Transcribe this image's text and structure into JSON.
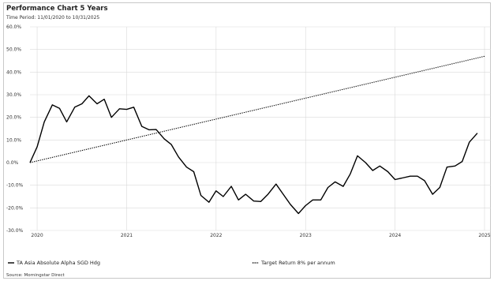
{
  "header": {
    "title": "Performance Chart 5 Years",
    "period_label": "Time Period:",
    "period_value": "11/01/2020 to 10/31/2025"
  },
  "footer": {
    "source": "Source: Morningstar Direct"
  },
  "chart_data": {
    "type": "line",
    "title": "Performance Chart 5 Years",
    "y_tick_labels": [
      "60.0%",
      "50.0%",
      "40.0%",
      "30.0%",
      "20.0%",
      "10.0%",
      "0.0%",
      "-10.0%",
      "-20.0%",
      "-30.0%"
    ],
    "x_tick_labels": [
      "2020",
      "2021",
      "2022",
      "2023",
      "2024",
      "2025"
    ],
    "ylim": [
      -30,
      60
    ],
    "y_unit": "%",
    "grid": true,
    "legend_position": "bottom",
    "series": [
      {
        "name": "TA Asia Absolute Alpha SGD Hdg",
        "style": "solid",
        "color": "#000000",
        "points": [
          [
            2019.92,
            0
          ],
          [
            2020.0,
            7
          ],
          [
            2020.08,
            18
          ],
          [
            2020.17,
            25.5
          ],
          [
            2020.25,
            24
          ],
          [
            2020.33,
            18
          ],
          [
            2020.42,
            24.5
          ],
          [
            2020.5,
            26
          ],
          [
            2020.58,
            29.5
          ],
          [
            2020.67,
            26
          ],
          [
            2020.75,
            28
          ],
          [
            2020.83,
            20
          ],
          [
            2020.92,
            23.8
          ],
          [
            2021.0,
            23.5
          ],
          [
            2021.08,
            24.5
          ],
          [
            2021.17,
            16
          ],
          [
            2021.25,
            14.5
          ],
          [
            2021.33,
            14.6
          ],
          [
            2021.42,
            10.5
          ],
          [
            2021.5,
            8
          ],
          [
            2021.58,
            2.5
          ],
          [
            2021.67,
            -2
          ],
          [
            2021.75,
            -4
          ],
          [
            2021.83,
            -14.5
          ],
          [
            2021.92,
            -17.5
          ],
          [
            2022.0,
            -12.5
          ],
          [
            2022.08,
            -15
          ],
          [
            2022.17,
            -10.5
          ],
          [
            2022.25,
            -16.5
          ],
          [
            2022.33,
            -14
          ],
          [
            2022.42,
            -17
          ],
          [
            2022.5,
            -17.2
          ],
          [
            2022.58,
            -14
          ],
          [
            2022.67,
            -9.5
          ],
          [
            2022.75,
            -14
          ],
          [
            2022.83,
            -18.5
          ],
          [
            2022.92,
            -22.5
          ],
          [
            2023.0,
            -19
          ],
          [
            2023.08,
            -16.5
          ],
          [
            2023.17,
            -16.5
          ],
          [
            2023.25,
            -11
          ],
          [
            2023.33,
            -8.5
          ],
          [
            2023.42,
            -10.5
          ],
          [
            2023.5,
            -5
          ],
          [
            2023.58,
            3
          ],
          [
            2023.67,
            0
          ],
          [
            2023.75,
            -3.5
          ],
          [
            2023.83,
            -1.5
          ],
          [
            2023.92,
            -4
          ],
          [
            2024.0,
            -7.5
          ],
          [
            2024.08,
            -6.8
          ],
          [
            2024.17,
            -6
          ],
          [
            2024.25,
            -6
          ],
          [
            2024.33,
            -8
          ],
          [
            2024.42,
            -14
          ],
          [
            2024.5,
            -11
          ],
          [
            2024.58,
            -2
          ],
          [
            2024.67,
            -1.5
          ],
          [
            2024.75,
            0.5
          ],
          [
            2024.83,
            9
          ],
          [
            2024.92,
            13
          ]
        ]
      },
      {
        "name": "Target Return 8% per annum",
        "style": "dotted",
        "color": "#000000",
        "points": [
          [
            2019.92,
            0
          ],
          [
            2025.0,
            47
          ]
        ]
      }
    ]
  }
}
